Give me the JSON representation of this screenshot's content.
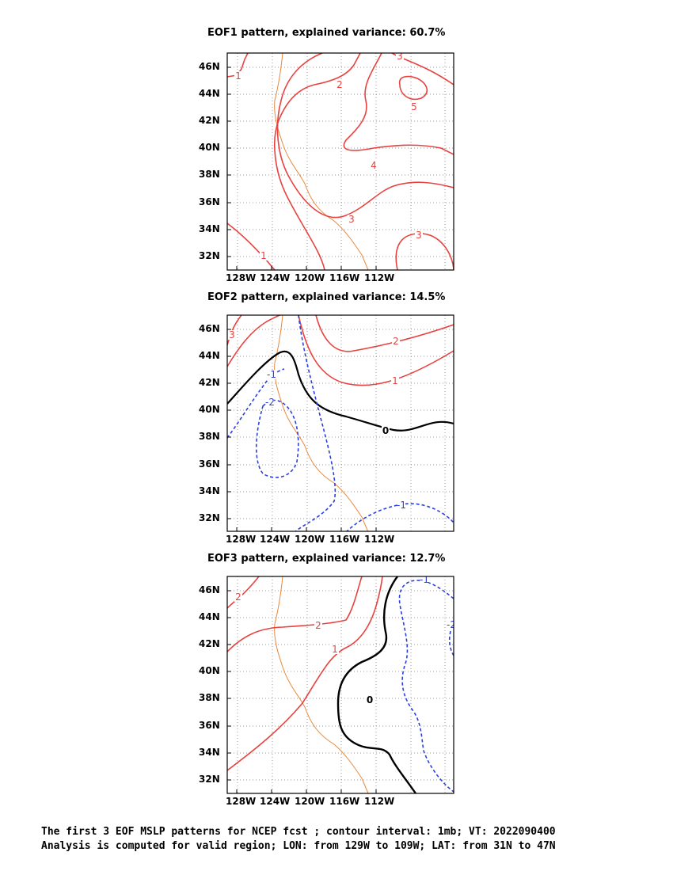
{
  "chart_data": [
    {
      "type": "contour",
      "title": "EOF1 pattern, explained variance: 60.7%",
      "xticks": [
        "128W",
        "124W",
        "120W",
        "116W",
        "112W"
      ],
      "yticks": [
        "46N",
        "44N",
        "42N",
        "40N",
        "38N",
        "36N",
        "34N",
        "32N"
      ],
      "xlim": [
        -129.3,
        -109.0
      ],
      "ylim": [
        31.0,
        47.0
      ],
      "contour_labels": [
        "1",
        "1",
        "2",
        "3",
        "3",
        "3",
        "4",
        "5"
      ]
    },
    {
      "type": "contour",
      "title": "EOF2 pattern, explained variance: 14.5%",
      "xticks": [
        "128W",
        "124W",
        "120W",
        "116W",
        "112W"
      ],
      "yticks": [
        "46N",
        "44N",
        "42N",
        "40N",
        "38N",
        "36N",
        "34N",
        "32N"
      ],
      "xlim": [
        -129.3,
        -109.0
      ],
      "ylim": [
        31.0,
        47.0
      ],
      "contour_labels": [
        "3",
        "2",
        "1",
        "0",
        "-1",
        "-2",
        "-1"
      ]
    },
    {
      "type": "contour",
      "title": "EOF3 pattern, explained variance: 12.7%",
      "xticks": [
        "128W",
        "124W",
        "120W",
        "116W",
        "112W"
      ],
      "yticks": [
        "46N",
        "44N",
        "42N",
        "40N",
        "38N",
        "36N",
        "34N",
        "32N"
      ],
      "xlim": [
        -129.3,
        -109.0
      ],
      "ylim": [
        31.0,
        47.0
      ],
      "contour_labels": [
        "2",
        "2",
        "1",
        "0",
        "-1",
        "-2"
      ]
    }
  ],
  "caption": {
    "line1": "The first 3 EOF MSLP patterns for NCEP fcst ; contour interval: 1mb; VT: 2022090400",
    "line2": "Analysis is computed for valid region; LON: from 129W to 109W; LAT: from 31N to 47N"
  },
  "colors": {
    "positive": "#e8423f",
    "negative": "#2b3fe0",
    "zero": "#000000",
    "coast": "#e8883a",
    "grid": "#999999"
  }
}
